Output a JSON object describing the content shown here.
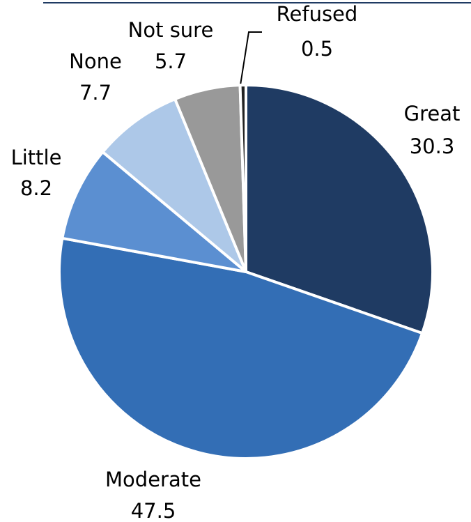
{
  "chart_data": {
    "type": "pie",
    "categories": [
      "Great",
      "Moderate",
      "Little",
      "None",
      "Not sure",
      "Refused"
    ],
    "values": [
      30.3,
      47.5,
      8.2,
      7.7,
      5.7,
      0.5
    ],
    "colors": [
      "#1f3b63",
      "#336eb5",
      "#5b8fd1",
      "#adc8e8",
      "#999999",
      "#222222"
    ]
  }
}
